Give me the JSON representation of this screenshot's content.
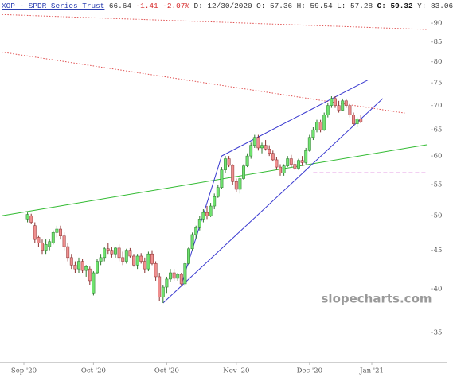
{
  "header": [
    {
      "text": "XOP - SPDR Series Trust",
      "color": "#2b3fb0"
    },
    {
      "text": "66.64",
      "color": "#333333"
    },
    {
      "text": "-1.41",
      "color": "#d62828"
    },
    {
      "text": "-2.07%",
      "color": "#d62828"
    },
    {
      "text": "D: 12/30/2020",
      "color": "#333333"
    },
    {
      "text": "O: 57.36",
      "color": "#333333"
    },
    {
      "text": "H: 59.54",
      "color": "#333333"
    },
    {
      "text": "L: 57.28",
      "color": "#333333"
    },
    {
      "text": "C: 59.32",
      "color": "#111111"
    },
    {
      "text": "Y: 83.06",
      "color": "#333333"
    }
  ],
  "watermark": "slopecharts.com",
  "chart_data": {
    "type": "candlestick",
    "log_y": true,
    "up_color": "#6fe26f",
    "down_color": "#ef8f8f",
    "categories": [
      "Sep '20",
      null,
      null,
      null,
      null,
      null,
      null,
      null,
      null,
      null,
      null,
      null,
      null,
      null,
      null,
      null,
      null,
      null,
      null,
      "Oct '20",
      null,
      null,
      null,
      null,
      null,
      null,
      null,
      null,
      null,
      null,
      null,
      null,
      null,
      null,
      null,
      null,
      null,
      null,
      null,
      "Oct '20",
      null,
      null,
      null,
      null,
      null,
      null,
      null,
      null,
      null,
      null,
      null,
      null,
      null,
      null,
      null,
      null,
      null,
      null,
      "Nov '20",
      null,
      null,
      null,
      null,
      null,
      null,
      null,
      null,
      null,
      null,
      null,
      null,
      null,
      null,
      null,
      null,
      null,
      null,
      null,
      "Dec '20",
      null,
      null,
      null,
      null,
      null,
      null,
      null,
      null,
      null,
      null,
      null,
      null,
      null,
      null,
      null,
      null,
      "Jan '21"
    ],
    "open": [
      null,
      49.5,
      50,
      48.5,
      46.8,
      46,
      45,
      45.5,
      46,
      47.5,
      48,
      47,
      45.5,
      44,
      43,
      42.5,
      43.5,
      42.3,
      42.5,
      39.5,
      42,
      43.5,
      44,
      45.2,
      45,
      44.5,
      45.3,
      44,
      43.5,
      45,
      44.2,
      43,
      44.2,
      43.5,
      42.5,
      44.5,
      43.2,
      41.5,
      39,
      40.2,
      41.2,
      42,
      41.3,
      41.8,
      40.6,
      43.2,
      45.2,
      47.2,
      48.2,
      49.5,
      50.5,
      50,
      51.5,
      53,
      54.5,
      57.5,
      59.5,
      58.3,
      55.5,
      54.2,
      56,
      58.2,
      60,
      62,
      63.5,
      61.5,
      62,
      61.3,
      60.5,
      59.3,
      58,
      57,
      58.2,
      59.5,
      58.5,
      57.8,
      59.2,
      58.8,
      61,
      63.5,
      65,
      66.5,
      65,
      68,
      70,
      71.5,
      70,
      69,
      71,
      70,
      68,
      66.2,
      67.2,
      null,
      null,
      null
    ],
    "high": [
      null,
      50.5,
      50.3,
      49,
      47,
      46.5,
      46.5,
      46.5,
      47.8,
      48.5,
      48.5,
      47.5,
      46,
      44.5,
      43.5,
      44,
      43.8,
      43,
      42.8,
      42.2,
      43.8,
      44.5,
      45.5,
      46,
      45.5,
      45.5,
      45.8,
      44.8,
      45.2,
      45.3,
      44.5,
      44.5,
      44.6,
      44,
      44.8,
      45,
      43.5,
      42,
      40.5,
      41.5,
      42.5,
      42.5,
      42,
      42,
      43.5,
      45.5,
      47.5,
      48.5,
      50,
      51,
      51.5,
      52,
      53.5,
      55,
      58,
      60,
      60,
      58.5,
      56,
      56.5,
      58.5,
      60.5,
      62.5,
      64,
      64,
      62.5,
      63,
      62,
      61,
      59.8,
      58.5,
      58.5,
      60,
      60.2,
      59,
      59.5,
      60,
      61.5,
      64,
      65.5,
      67,
      67,
      68.5,
      70.5,
      72,
      72,
      71,
      71.5,
      71.5,
      70.5,
      68.5,
      67.5,
      68,
      null,
      null,
      null
    ],
    "low": [
      null,
      49,
      48.8,
      46,
      45.5,
      44.5,
      44.5,
      45,
      45.8,
      46.8,
      46.5,
      45,
      43.5,
      42.5,
      42,
      42,
      42,
      41.5,
      40.5,
      39.2,
      41.8,
      43,
      43.5,
      44.5,
      44,
      44,
      43.5,
      43,
      43.2,
      44,
      42.8,
      42.5,
      43.2,
      42,
      42.2,
      43,
      41,
      38.5,
      38.3,
      39.5,
      40.8,
      41,
      41,
      40.3,
      40.4,
      43,
      45,
      46.5,
      47.8,
      49,
      49.5,
      49.8,
      51,
      52.8,
      54.2,
      57,
      58,
      55,
      53.8,
      53.5,
      55.8,
      58,
      59.5,
      61.5,
      61,
      60.5,
      61,
      60,
      59,
      57.5,
      56.5,
      56.5,
      58,
      58,
      57.5,
      57.5,
      58.2,
      58.5,
      60.8,
      63,
      64.5,
      64.5,
      64.8,
      67.5,
      69.5,
      69.5,
      68.5,
      68.8,
      69.5,
      67.5,
      65.8,
      65.5,
      66.3,
      null,
      null,
      null
    ],
    "close": [
      null,
      50.2,
      49,
      46.5,
      46,
      45,
      45.8,
      46.2,
      47.5,
      48,
      47,
      45.5,
      44,
      43,
      42.5,
      43.5,
      42.3,
      42.8,
      41,
      42,
      43.5,
      44,
      45.2,
      45,
      44.5,
      45.3,
      44,
      43.5,
      45,
      44.2,
      43,
      44.2,
      43.5,
      42.5,
      44.5,
      43.2,
      41.5,
      39,
      40.2,
      41.2,
      42,
      41.3,
      41.8,
      40.6,
      43.2,
      45.2,
      47.2,
      48.2,
      49.5,
      50.5,
      50,
      51.5,
      53,
      54.5,
      57.5,
      59.5,
      58.3,
      55.5,
      54.2,
      56,
      58.2,
      60,
      62,
      63.5,
      61.5,
      62,
      61.3,
      60.5,
      59.3,
      58,
      57,
      58.2,
      59.5,
      58.5,
      57.8,
      59.2,
      58.8,
      61,
      63.5,
      65,
      66.5,
      65,
      68,
      70,
      71.5,
      70,
      69,
      71,
      70,
      68,
      66.2,
      67.2,
      66.6,
      null,
      null,
      null
    ],
    "ylim": [
      32,
      96.6
    ],
    "yticks": [
      35,
      40,
      45,
      50,
      55,
      60,
      65,
      70,
      75,
      80,
      85,
      90
    ],
    "lines": [
      {
        "x": [
          -6,
          110
        ],
        "y": [
          92.4,
          88.3
        ],
        "color": "#e05050",
        "style": "dotted"
      },
      {
        "x": [
          -6,
          104
        ],
        "y": [
          82.4,
          68.4
        ],
        "color": "#e05050",
        "style": "dotted"
      },
      {
        "x": [
          -6,
          110
        ],
        "y": [
          50.0,
          62.1
        ],
        "color": "#33bb33",
        "style": "solid"
      },
      {
        "x": [
          38,
          98
        ],
        "y": [
          38.3,
          71.5
        ],
        "color": "#3a3ad0",
        "style": "solid"
      },
      {
        "x": [
          54,
          94
        ],
        "y": [
          60.0,
          75.7
        ],
        "color": "#3a3ad0",
        "style": "solid"
      },
      {
        "x": [
          43,
          54
        ],
        "y": [
          40.5,
          60.0
        ],
        "color": "#3a3ad0",
        "style": "solid"
      },
      {
        "x": [
          79,
          110
        ],
        "y": [
          57.0,
          57.0
        ],
        "color": "#cc44cc",
        "style": "dashed"
      }
    ]
  }
}
